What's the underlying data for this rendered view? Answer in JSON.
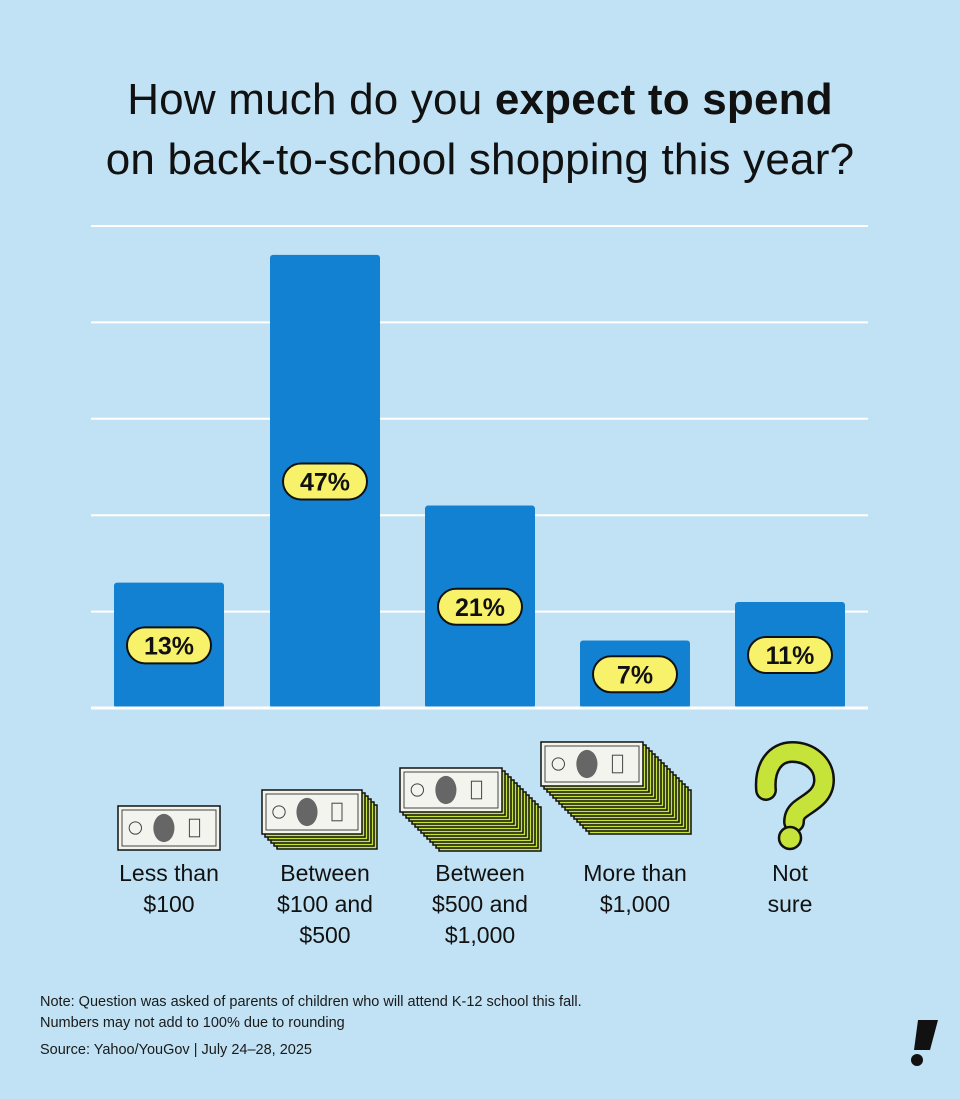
{
  "title": {
    "part1": "How much do you ",
    "bold": "expect to spend",
    "part2": "on back-to-school shopping this year?"
  },
  "chart_data": {
    "type": "bar",
    "title": "How much do you expect to spend on back-to-school shopping this year?",
    "categories": [
      "Less than $100",
      "Between $100 and $500",
      "Between $500 and $1,000",
      "More than $1,000",
      "Not sure"
    ],
    "category_lines": [
      [
        "Less than",
        "$100"
      ],
      [
        "Between",
        "$100 and",
        "$500"
      ],
      [
        "Between",
        "$500 and",
        "$1,000"
      ],
      [
        "More than",
        "$1,000"
      ],
      [
        "Not",
        "sure"
      ]
    ],
    "values": [
      13,
      47,
      21,
      7,
      11
    ],
    "value_labels": [
      "13%",
      "47%",
      "21%",
      "7%",
      "11%"
    ],
    "ylim": [
      0,
      50
    ],
    "grid": true,
    "xlabel": "",
    "ylabel": "",
    "colors": {
      "bar": "#1381d1",
      "badge": "#f7f26a",
      "grid": "#ffffff",
      "background": "#c0e2f4",
      "bill_stack": "#c6e33a",
      "question_mark": "#c6e33a"
    },
    "icons": [
      "single-bill-icon",
      "small-bill-stack-icon",
      "medium-bill-stack-icon",
      "large-bill-stack-icon",
      "question-mark-icon"
    ]
  },
  "note": {
    "line1": "Note: Question was asked of parents of children who will attend K-12 school this fall.",
    "line2": "Numbers may not add to 100% due to rounding"
  },
  "source": "Source: Yahoo/YouGov | July 24–28, 2025"
}
